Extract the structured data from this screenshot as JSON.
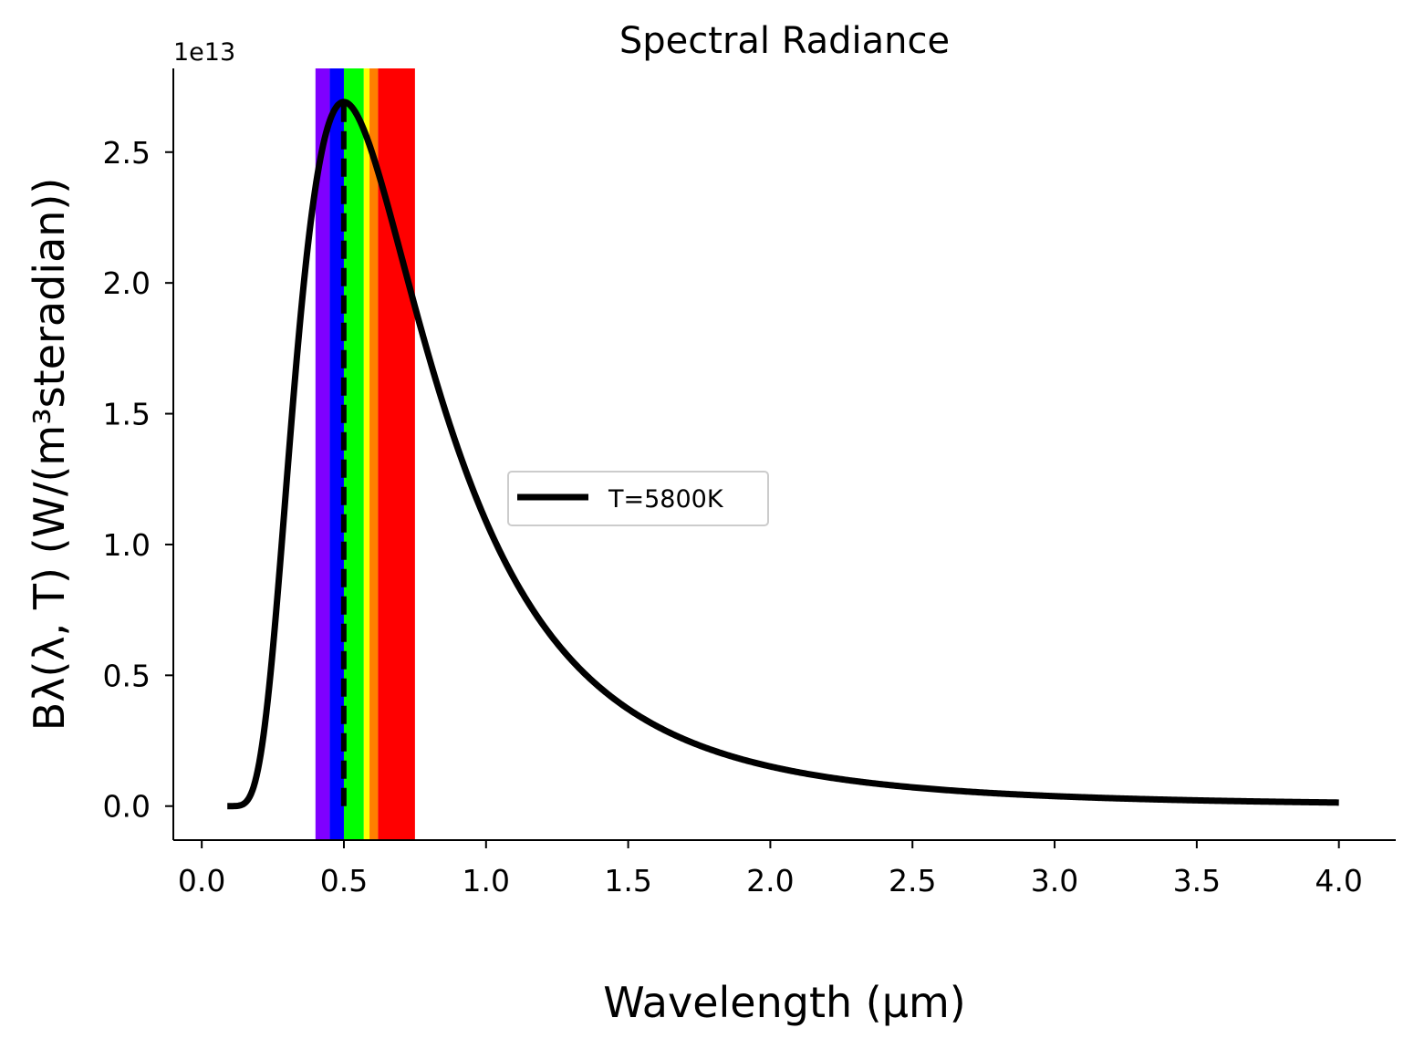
{
  "chart_data": {
    "type": "line",
    "title": "Spectral Radiance",
    "xlabel": "Wavelength (μm)",
    "ylabel": "Bλ(λ, T) (W/(m³steradian))",
    "y_offset_label": "1e13",
    "xlim": [
      -0.1,
      4.2
    ],
    "ylim": [
      -0.13,
      2.82
    ],
    "x_ticks": [
      0.0,
      0.5,
      1.0,
      1.5,
      2.0,
      2.5,
      3.0,
      3.5,
      4.0
    ],
    "x_tick_labels": [
      "0.0",
      "0.5",
      "1.0",
      "1.5",
      "2.0",
      "2.5",
      "3.0",
      "3.5",
      "4.0"
    ],
    "y_ticks": [
      0.0,
      0.5,
      1.0,
      1.5,
      2.0,
      2.5
    ],
    "y_tick_labels": [
      "0.0",
      "0.5",
      "1.0",
      "1.5",
      "2.0",
      "2.5"
    ],
    "grid": false,
    "legend_position": "center",
    "series": [
      {
        "name": "T=5800K",
        "color": "#000000",
        "temperature_k": 5800,
        "x_range": [
          0.09,
          4.0
        ]
      }
    ],
    "peak_marker": {
      "x": 0.4996,
      "style": "dashed",
      "color": "#000000"
    },
    "visible_bands": [
      {
        "from": 0.4,
        "to": 0.45,
        "color": "#7f00ff"
      },
      {
        "from": 0.45,
        "to": 0.5,
        "color": "#0000ff"
      },
      {
        "from": 0.5,
        "to": 0.57,
        "color": "#00ff00"
      },
      {
        "from": 0.57,
        "to": 0.59,
        "color": "#ffff00"
      },
      {
        "from": 0.59,
        "to": 0.62,
        "color": "#ff7f00"
      },
      {
        "from": 0.62,
        "to": 0.75,
        "color": "#ff0000"
      }
    ]
  }
}
